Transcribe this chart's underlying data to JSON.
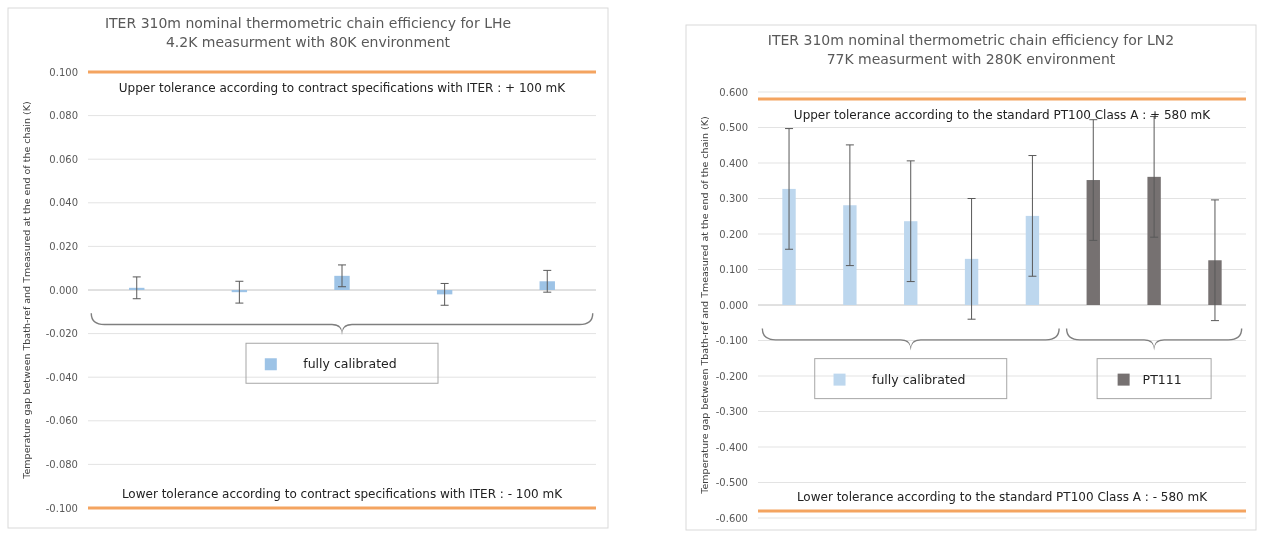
{
  "chart_data": [
    {
      "type": "bar",
      "title": "ITER 310m nominal thermometric chain efficiency for LHe\n4.2K measurment with 80K environment",
      "ylabel": "Temperature gap between Tbath-ref and Tmeasured at the end of the chain (K)",
      "categories": [
        null,
        null,
        null,
        null,
        null
      ],
      "series": [
        {
          "name": "fully calibrated",
          "color": "#9dc3e6",
          "values": [
            0.001,
            -0.001,
            0.0065,
            -0.002,
            0.004
          ],
          "errors": [
            0.005,
            0.005,
            0.005,
            0.005,
            0.005
          ]
        }
      ],
      "legend": "bottom",
      "ylim": [
        -0.1,
        0.1
      ],
      "yticks": [
        {
          "value": -0.1,
          "label": "-0.100"
        },
        {
          "value": -0.08,
          "label": "-0.080"
        },
        {
          "value": -0.06,
          "label": "-0.060"
        },
        {
          "value": -0.04,
          "label": "-0.040"
        },
        {
          "value": -0.02,
          "label": "-0.020"
        },
        {
          "value": 0,
          "label": "0.000"
        },
        {
          "value": 0.02,
          "label": "0.020"
        },
        {
          "value": 0.04,
          "label": "0.040"
        },
        {
          "value": 0.06,
          "label": "0.060"
        },
        {
          "value": 0.08,
          "label": "0.080"
        },
        {
          "value": 0.1,
          "label": "0.100"
        }
      ],
      "grid": true,
      "ref_lines": [
        {
          "axis": "y",
          "value": 0.1,
          "label": "Upper tolerance according to contract specifications with ITER : + 100 mK",
          "color": "#f4a460"
        },
        {
          "axis": "y",
          "value": -0.1,
          "label": "Lower tolerance according to contract specifications with ITER : - 100 mK",
          "color": "#f4a460"
        }
      ]
    },
    {
      "type": "bar",
      "title": "ITER 310m nominal thermometric chain efficiency for LN2\n77K measurment with 280K environment",
      "ylabel": "Temperature gap between Tbath-ref and Tmeasured at the end of the chain (K)",
      "categories": [
        null,
        null,
        null,
        null,
        null,
        null,
        null,
        null
      ],
      "series": [
        {
          "name": "fully calibrated",
          "color": "#bdd7ee",
          "values": [
            0.327,
            0.281,
            0.236,
            0.13,
            0.251,
            null,
            null,
            null
          ],
          "errors": [
            0.17,
            0.17,
            0.17,
            0.17,
            0.17,
            null,
            null,
            null
          ]
        },
        {
          "name": "PT111",
          "color": "#767171",
          "values": [
            null,
            null,
            null,
            null,
            null,
            0.352,
            0.361,
            0.126
          ],
          "errors": [
            null,
            null,
            null,
            null,
            null,
            0.17,
            0.17,
            0.17
          ]
        }
      ],
      "legend": "bottom",
      "ylim": [
        -0.6,
        0.6
      ],
      "yticks": [
        {
          "value": -0.6,
          "label": "-0.600"
        },
        {
          "value": -0.5,
          "label": "-0.500"
        },
        {
          "value": -0.4,
          "label": "-0.400"
        },
        {
          "value": -0.3,
          "label": "-0.300"
        },
        {
          "value": -0.2,
          "label": "-0.200"
        },
        {
          "value": -0.1,
          "label": "-0.100"
        },
        {
          "value": 0,
          "label": "0.000"
        },
        {
          "value": 0.1,
          "label": "0.100"
        },
        {
          "value": 0.2,
          "label": "0.200"
        },
        {
          "value": 0.3,
          "label": "0.300"
        },
        {
          "value": 0.4,
          "label": "0.400"
        },
        {
          "value": 0.5,
          "label": "0.500"
        },
        {
          "value": 0.6,
          "label": "0.600"
        }
      ],
      "grid": true,
      "ref_lines": [
        {
          "axis": "y",
          "value": 0.58,
          "label": "Upper tolerance according to the standard PT100 Class A : + 580 mK",
          "color": "#f4a460"
        },
        {
          "axis": "y",
          "value": -0.58,
          "label": "Lower tolerance according to the standard PT100 Class A : - 580 mK",
          "color": "#f4a460"
        }
      ]
    }
  ]
}
